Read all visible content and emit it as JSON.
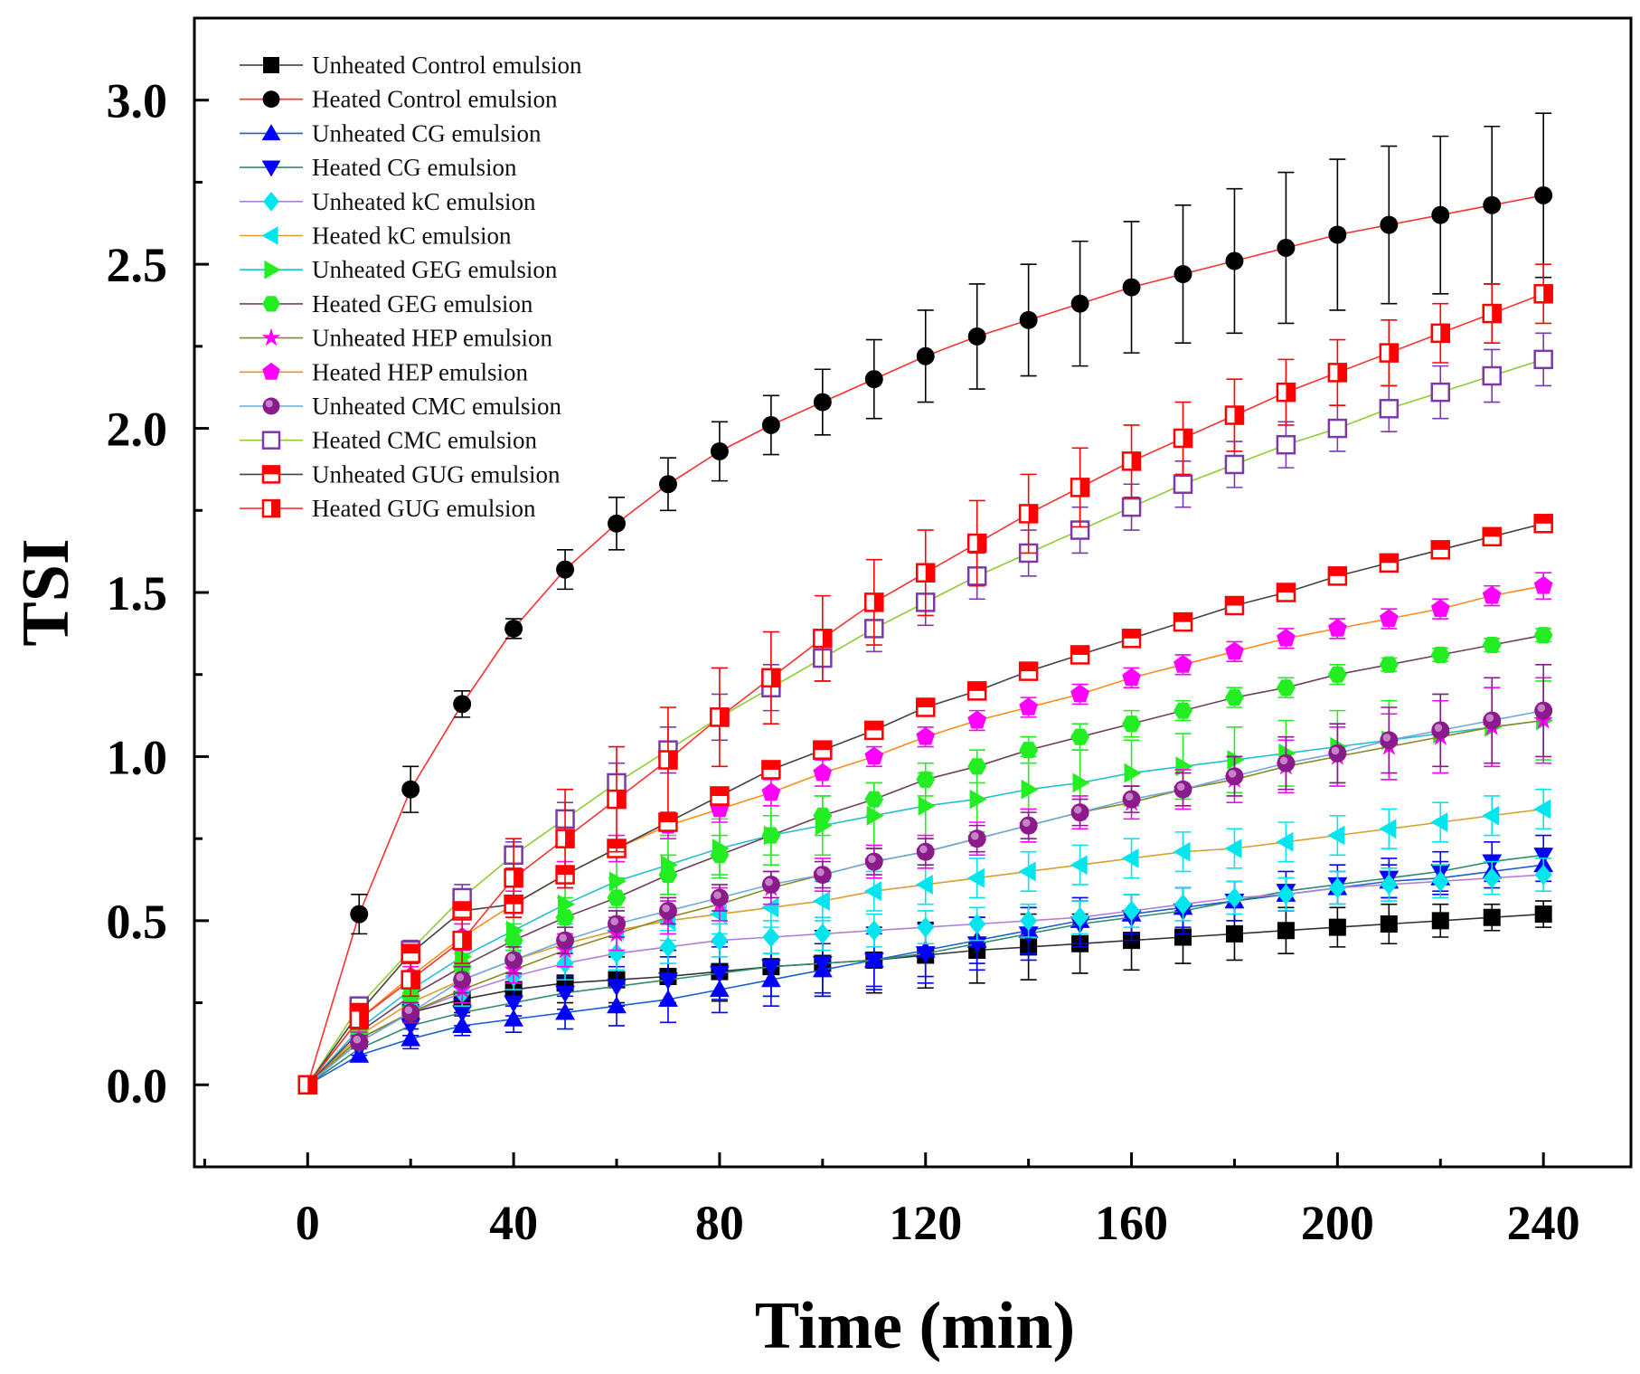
{
  "chart_data": {
    "type": "line",
    "title": "",
    "xlabel": "Time (min)",
    "ylabel": "TSI",
    "xlim": [
      -22,
      257
    ],
    "ylim": [
      -0.25,
      3.25
    ],
    "xticks": [
      "0",
      "40",
      "80",
      "120",
      "160",
      "200",
      "240"
    ],
    "yticks": [
      "0.0",
      "0.5",
      "1.0",
      "1.5",
      "2.0",
      "2.5",
      "3.0"
    ],
    "legend_position": "top-left",
    "x": [
      0,
      10,
      20,
      30,
      40,
      50,
      60,
      70,
      80,
      90,
      100,
      110,
      120,
      130,
      140,
      150,
      160,
      170,
      180,
      190,
      200,
      210,
      220,
      230,
      240
    ],
    "series": [
      {
        "name": "Unheated Control emulsion",
        "marker": "square",
        "color": "#000000",
        "line_color": "#333333",
        "values": [
          0,
          0.14,
          0.22,
          0.26,
          0.29,
          0.31,
          0.32,
          0.33,
          0.345,
          0.36,
          0.37,
          0.38,
          0.395,
          0.41,
          0.42,
          0.43,
          0.44,
          0.45,
          0.46,
          0.47,
          0.48,
          0.49,
          0.5,
          0.51,
          0.52
        ],
        "errors": [
          0,
          0.03,
          0.03,
          0.04,
          0.05,
          0.06,
          0.07,
          0.08,
          0.09,
          0.09,
          0.1,
          0.1,
          0.1,
          0.1,
          0.1,
          0.09,
          0.09,
          0.08,
          0.08,
          0.07,
          0.06,
          0.06,
          0.05,
          0.04,
          0.04
        ]
      },
      {
        "name": "Heated Control emulsion",
        "marker": "circle",
        "color": "#000000",
        "line_color": "#ff3030",
        "values": [
          0,
          0.52,
          0.9,
          1.16,
          1.39,
          1.57,
          1.71,
          1.83,
          1.93,
          2.01,
          2.08,
          2.15,
          2.22,
          2.28,
          2.33,
          2.38,
          2.43,
          2.47,
          2.51,
          2.55,
          2.59,
          2.62,
          2.65,
          2.68,
          2.71
        ],
        "errors": [
          0,
          0.06,
          0.07,
          0.04,
          0.03,
          0.06,
          0.08,
          0.08,
          0.09,
          0.09,
          0.1,
          0.12,
          0.14,
          0.16,
          0.17,
          0.19,
          0.2,
          0.21,
          0.22,
          0.23,
          0.23,
          0.24,
          0.24,
          0.24,
          0.25
        ]
      },
      {
        "name": "Unheated CG emulsion",
        "marker": "triangle-up",
        "color": "#0000ff",
        "line_color": "#1c5fd0",
        "values": [
          0,
          0.09,
          0.14,
          0.18,
          0.2,
          0.22,
          0.24,
          0.26,
          0.29,
          0.32,
          0.35,
          0.38,
          0.41,
          0.44,
          0.47,
          0.5,
          0.52,
          0.54,
          0.56,
          0.58,
          0.6,
          0.62,
          0.63,
          0.65,
          0.67
        ],
        "errors": [
          0,
          0.02,
          0.03,
          0.03,
          0.04,
          0.05,
          0.06,
          0.07,
          0.07,
          0.08,
          0.08,
          0.08,
          0.08,
          0.07,
          0.07,
          0.07,
          0.06,
          0.06,
          0.06,
          0.05,
          0.05,
          0.05,
          0.05,
          0.05,
          0.05
        ]
      },
      {
        "name": "Heated CG emulsion",
        "marker": "triangle-down",
        "color": "#0000ff",
        "line_color": "#2e8b6e",
        "values": [
          0,
          0.11,
          0.18,
          0.22,
          0.25,
          0.28,
          0.3,
          0.32,
          0.34,
          0.36,
          0.37,
          0.38,
          0.4,
          0.43,
          0.46,
          0.49,
          0.51,
          0.53,
          0.56,
          0.59,
          0.61,
          0.63,
          0.65,
          0.68,
          0.7
        ],
        "errors": [
          0,
          0.02,
          0.03,
          0.04,
          0.04,
          0.05,
          0.06,
          0.07,
          0.08,
          0.09,
          0.09,
          0.09,
          0.09,
          0.08,
          0.08,
          0.07,
          0.07,
          0.07,
          0.06,
          0.06,
          0.06,
          0.06,
          0.06,
          0.06,
          0.06
        ]
      },
      {
        "name": "Unheated kC emulsion",
        "marker": "diamond",
        "color": "#00e5ee",
        "line_color": "#b57ed6",
        "values": [
          0,
          0.13,
          0.22,
          0.28,
          0.33,
          0.37,
          0.4,
          0.42,
          0.44,
          0.45,
          0.46,
          0.47,
          0.48,
          0.49,
          0.5,
          0.51,
          0.53,
          0.55,
          0.57,
          0.58,
          0.6,
          0.61,
          0.62,
          0.63,
          0.64
        ],
        "errors": [
          0,
          0.02,
          0.03,
          0.04,
          0.04,
          0.05,
          0.05,
          0.05,
          0.05,
          0.05,
          0.05,
          0.05,
          0.05,
          0.05,
          0.05,
          0.05,
          0.05,
          0.05,
          0.05,
          0.05,
          0.05,
          0.05,
          0.05,
          0.05,
          0.05
        ]
      },
      {
        "name": "Heated kC emulsion",
        "marker": "triangle-left",
        "color": "#00e5ee",
        "line_color": "#d9a030",
        "values": [
          0,
          0.15,
          0.25,
          0.32,
          0.38,
          0.43,
          0.47,
          0.5,
          0.52,
          0.54,
          0.56,
          0.59,
          0.61,
          0.63,
          0.65,
          0.67,
          0.69,
          0.71,
          0.72,
          0.74,
          0.76,
          0.78,
          0.8,
          0.82,
          0.84
        ],
        "errors": [
          0,
          0.02,
          0.03,
          0.04,
          0.05,
          0.06,
          0.06,
          0.06,
          0.06,
          0.06,
          0.06,
          0.06,
          0.06,
          0.06,
          0.06,
          0.06,
          0.06,
          0.06,
          0.06,
          0.06,
          0.06,
          0.06,
          0.06,
          0.06,
          0.06
        ]
      },
      {
        "name": "Unheated GEG emulsion",
        "marker": "triangle-right",
        "color": "#22ee22",
        "line_color": "#20c0d0",
        "values": [
          0,
          0.17,
          0.29,
          0.39,
          0.47,
          0.55,
          0.62,
          0.67,
          0.72,
          0.76,
          0.79,
          0.82,
          0.85,
          0.87,
          0.9,
          0.92,
          0.95,
          0.97,
          0.99,
          1.01,
          1.03,
          1.05,
          1.07,
          1.09,
          1.11
        ],
        "errors": [
          0,
          0.03,
          0.04,
          0.05,
          0.06,
          0.07,
          0.08,
          0.09,
          0.09,
          0.09,
          0.09,
          0.1,
          0.1,
          0.1,
          0.1,
          0.1,
          0.1,
          0.1,
          0.1,
          0.1,
          0.11,
          0.12,
          0.12,
          0.12,
          0.12
        ]
      },
      {
        "name": "Heated GEG emulsion",
        "marker": "hexagon",
        "color": "#22ee22",
        "line_color": "#704060",
        "values": [
          0,
          0.16,
          0.27,
          0.36,
          0.44,
          0.51,
          0.57,
          0.64,
          0.7,
          0.76,
          0.82,
          0.87,
          0.93,
          0.97,
          1.02,
          1.06,
          1.1,
          1.14,
          1.18,
          1.21,
          1.25,
          1.28,
          1.31,
          1.34,
          1.37
        ],
        "errors": [
          0,
          0.02,
          0.03,
          0.04,
          0.05,
          0.06,
          0.06,
          0.06,
          0.06,
          0.06,
          0.06,
          0.05,
          0.05,
          0.05,
          0.04,
          0.04,
          0.04,
          0.03,
          0.03,
          0.03,
          0.03,
          0.02,
          0.02,
          0.02,
          0.02
        ]
      },
      {
        "name": "Unheated HEP emulsion",
        "marker": "star",
        "color": "#ff00ff",
        "line_color": "#8a8a20",
        "values": [
          0,
          0.14,
          0.22,
          0.29,
          0.35,
          0.41,
          0.46,
          0.51,
          0.55,
          0.6,
          0.64,
          0.68,
          0.71,
          0.75,
          0.79,
          0.83,
          0.86,
          0.9,
          0.93,
          0.97,
          1.0,
          1.03,
          1.06,
          1.09,
          1.11
        ],
        "errors": [
          0,
          0.02,
          0.03,
          0.04,
          0.04,
          0.05,
          0.05,
          0.05,
          0.05,
          0.05,
          0.05,
          0.05,
          0.05,
          0.05,
          0.05,
          0.05,
          0.05,
          0.06,
          0.07,
          0.08,
          0.09,
          0.1,
          0.11,
          0.12,
          0.13
        ]
      },
      {
        "name": "Heated HEP emulsion",
        "marker": "pentagon",
        "color": "#ff00ff",
        "line_color": "#ff8c1a",
        "values": [
          0,
          0.2,
          0.33,
          0.45,
          0.55,
          0.64,
          0.72,
          0.79,
          0.84,
          0.89,
          0.95,
          1.0,
          1.06,
          1.11,
          1.15,
          1.19,
          1.24,
          1.28,
          1.32,
          1.36,
          1.39,
          1.42,
          1.45,
          1.49,
          1.52
        ],
        "errors": [
          0,
          0.02,
          0.03,
          0.04,
          0.04,
          0.04,
          0.04,
          0.04,
          0.04,
          0.04,
          0.04,
          0.03,
          0.03,
          0.03,
          0.03,
          0.03,
          0.03,
          0.03,
          0.03,
          0.03,
          0.03,
          0.03,
          0.03,
          0.03,
          0.04
        ]
      },
      {
        "name": "Unheated CMC emulsion",
        "marker": "sphere",
        "color": "#8b1a8b",
        "line_color": "#6fa8dc",
        "values": [
          0,
          0.13,
          0.22,
          0.32,
          0.38,
          0.44,
          0.49,
          0.53,
          0.57,
          0.61,
          0.64,
          0.68,
          0.71,
          0.75,
          0.79,
          0.83,
          0.87,
          0.9,
          0.94,
          0.98,
          1.01,
          1.05,
          1.08,
          1.11,
          1.14
        ],
        "errors": [
          0,
          0.02,
          0.03,
          0.04,
          0.04,
          0.04,
          0.04,
          0.04,
          0.04,
          0.04,
          0.04,
          0.04,
          0.04,
          0.04,
          0.04,
          0.04,
          0.04,
          0.05,
          0.06,
          0.08,
          0.09,
          0.1,
          0.11,
          0.13,
          0.14
        ]
      },
      {
        "name": "Heated CMC emulsion",
        "marker": "square-open",
        "color": "#7b3aa8",
        "line_color": "#8fcc30",
        "values": [
          0,
          0.24,
          0.41,
          0.57,
          0.7,
          0.81,
          0.92,
          1.02,
          1.12,
          1.21,
          1.3,
          1.39,
          1.47,
          1.55,
          1.62,
          1.69,
          1.76,
          1.83,
          1.89,
          1.95,
          2.0,
          2.06,
          2.11,
          2.16,
          2.21
        ],
        "errors": [
          0,
          0.02,
          0.03,
          0.04,
          0.04,
          0.05,
          0.06,
          0.07,
          0.07,
          0.07,
          0.07,
          0.07,
          0.07,
          0.07,
          0.07,
          0.07,
          0.07,
          0.07,
          0.07,
          0.07,
          0.07,
          0.07,
          0.08,
          0.08,
          0.08
        ]
      },
      {
        "name": "Unheated GUG emulsion",
        "marker": "square-half",
        "color": "#ff0000",
        "line_color": "#444444",
        "values": [
          0,
          0.22,
          0.4,
          0.53,
          0.55,
          0.64,
          0.72,
          0.8,
          0.88,
          0.96,
          1.02,
          1.08,
          1.15,
          1.2,
          1.26,
          1.31,
          1.36,
          1.41,
          1.46,
          1.5,
          1.55,
          1.59,
          1.63,
          1.67,
          1.71
        ],
        "errors": [
          0,
          0.02,
          0.02,
          0.02,
          0.02,
          0.02,
          0.02,
          0.02,
          0.02,
          0.02,
          0.02,
          0.02,
          0.02,
          0.02,
          0.02,
          0.02,
          0.02,
          0.02,
          0.02,
          0.02,
          0.02,
          0.02,
          0.02,
          0.02,
          0.02
        ]
      },
      {
        "name": "Heated GUG emulsion",
        "marker": "square-half-v",
        "color": "#ff0000",
        "line_color": "#ff3030",
        "values": [
          0,
          0.2,
          0.32,
          0.44,
          0.63,
          0.75,
          0.87,
          0.99,
          1.12,
          1.24,
          1.36,
          1.47,
          1.56,
          1.65,
          1.74,
          1.82,
          1.9,
          1.97,
          2.04,
          2.11,
          2.17,
          2.23,
          2.29,
          2.35,
          2.41
        ],
        "errors": [
          0,
          0.03,
          0.05,
          0.07,
          0.12,
          0.15,
          0.16,
          0.16,
          0.15,
          0.14,
          0.13,
          0.13,
          0.13,
          0.13,
          0.12,
          0.12,
          0.11,
          0.11,
          0.11,
          0.1,
          0.1,
          0.1,
          0.09,
          0.09,
          0.09
        ]
      }
    ]
  }
}
